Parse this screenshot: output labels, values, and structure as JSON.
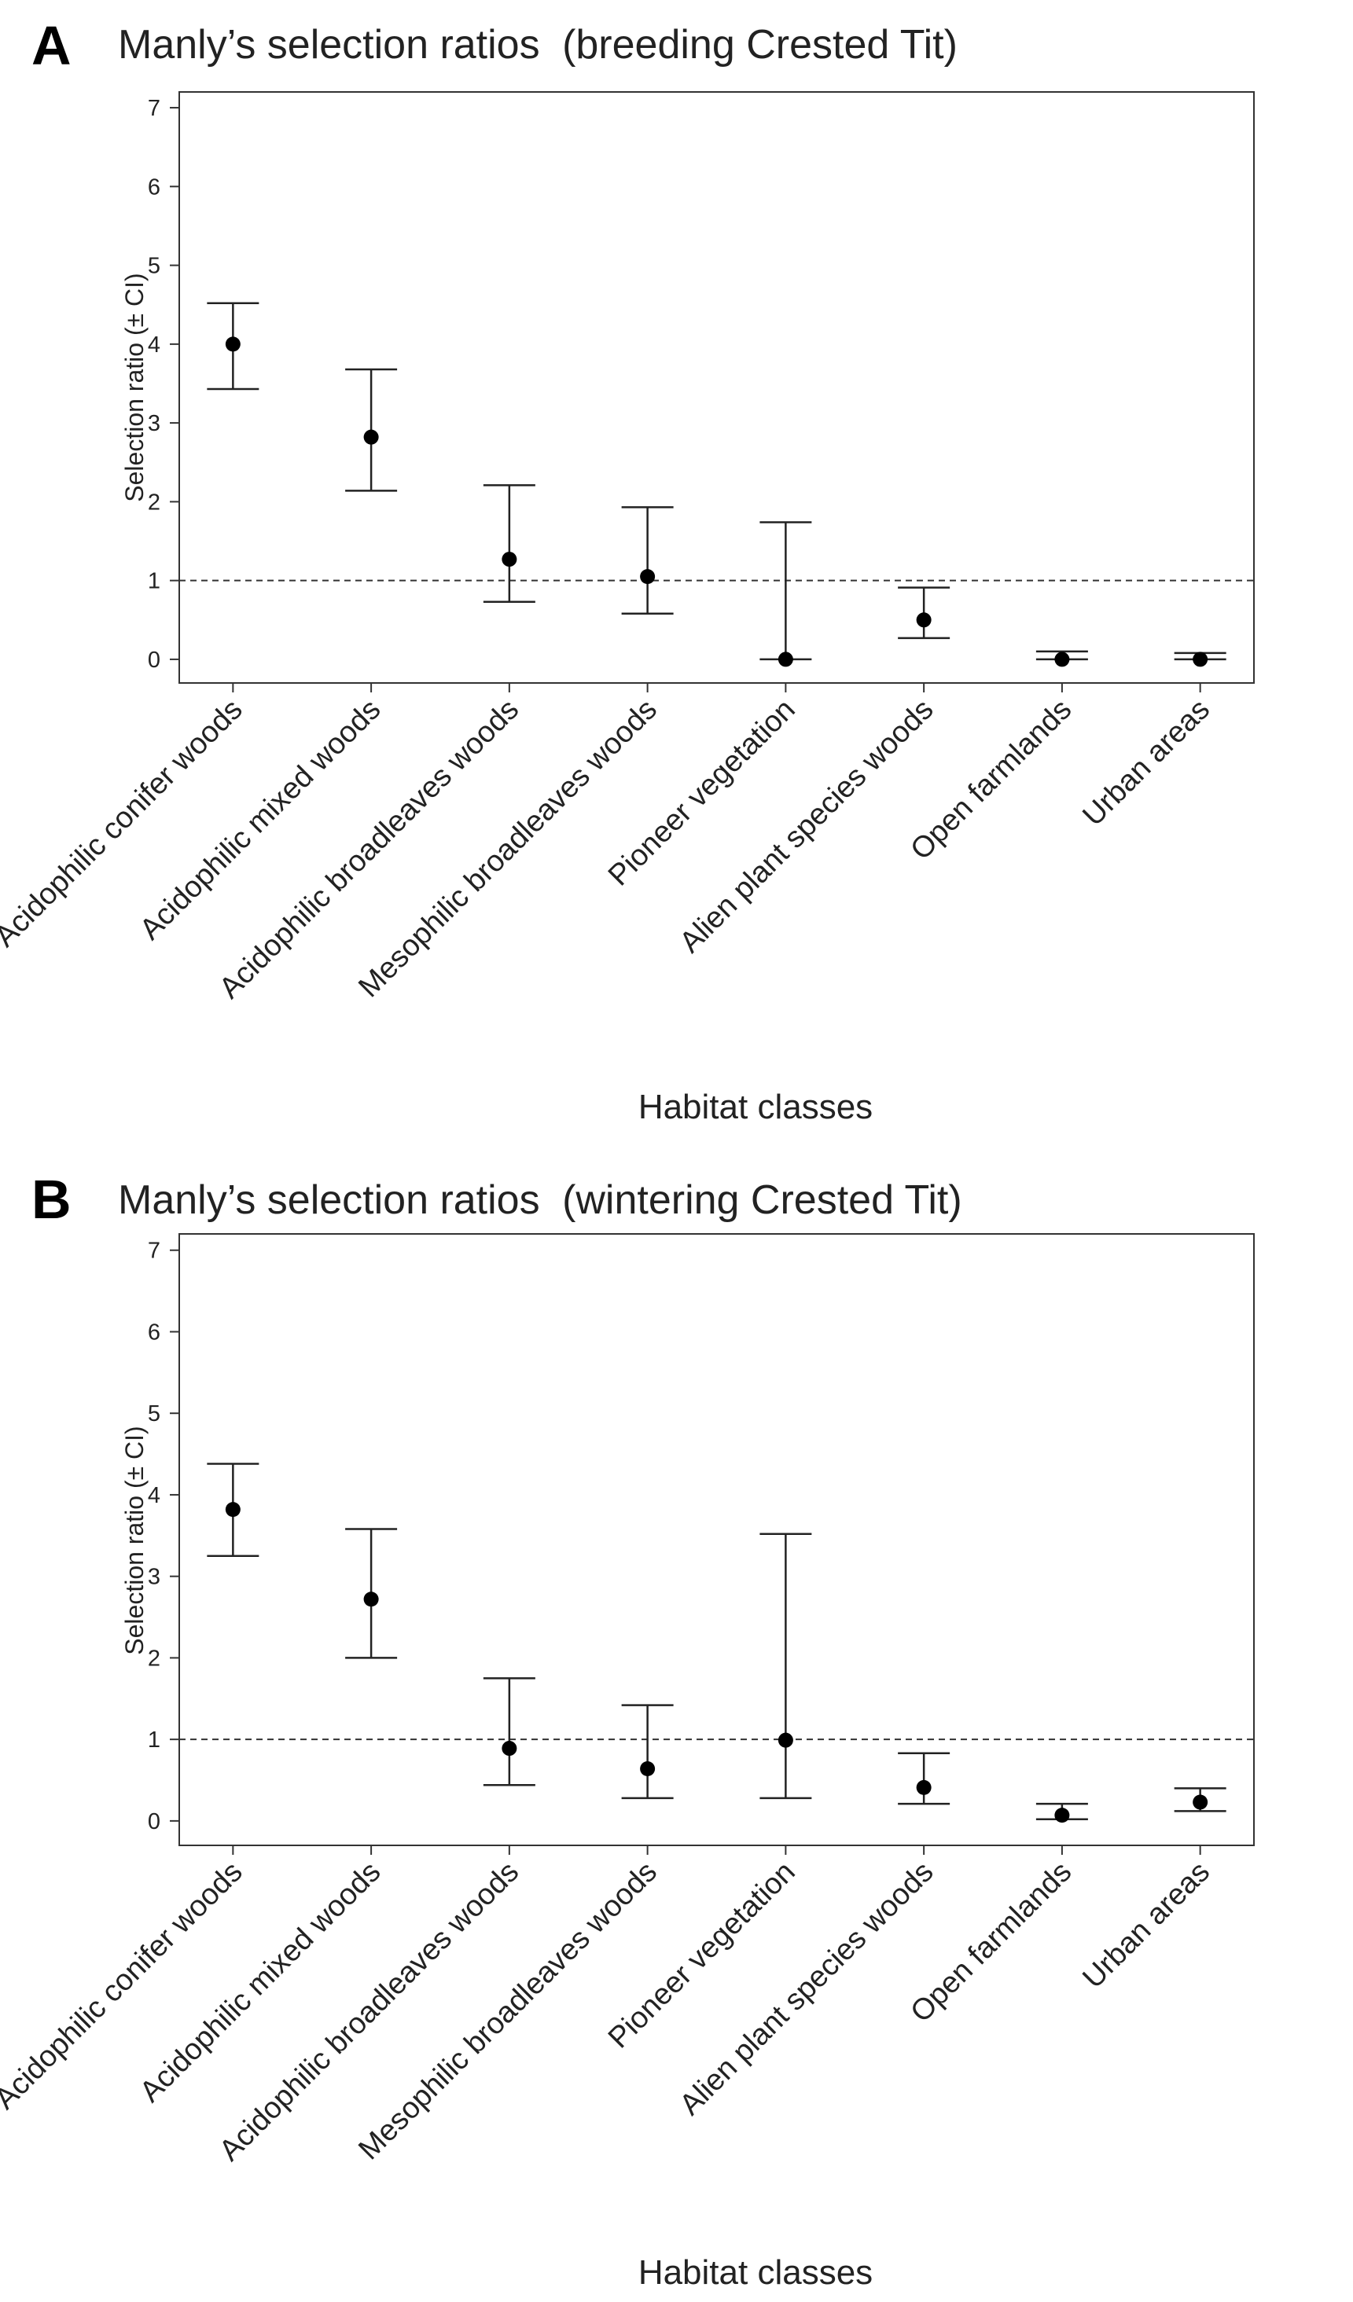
{
  "chart_data": [
    {
      "type": "scatter",
      "panel": "A",
      "title": "Manly’s selection ratios",
      "subtitle": "(breeding Crested Tit)",
      "xlabel": "Habitat classes",
      "ylabel": "Selection ratio (± CI)",
      "ylim": [
        -0.3,
        7.2
      ],
      "yticks": [
        0,
        1,
        2,
        3,
        4,
        5,
        6,
        7
      ],
      "reference_line": 1,
      "categories": [
        "Acidophilic conifer woods",
        "Acidophilic mixed woods",
        "Acidophilic broadleaves woods",
        "Mesophilic broadleaves woods",
        "Pioneer vegetation",
        "Alien plant species woods",
        "Open farmlands",
        "Urban areas"
      ],
      "values": [
        4.0,
        2.82,
        1.27,
        1.05,
        0.0,
        0.5,
        0.0,
        0.0
      ],
      "ci_lower": [
        3.43,
        2.14,
        0.73,
        0.58,
        0.0,
        0.27,
        0.0,
        0.0
      ],
      "ci_upper": [
        4.52,
        3.68,
        2.21,
        1.93,
        1.74,
        0.91,
        0.1,
        0.08
      ],
      "grid": false
    },
    {
      "type": "scatter",
      "panel": "B",
      "title": "Manly’s selection ratios",
      "subtitle": "(wintering Crested Tit)",
      "xlabel": "Habitat classes",
      "ylabel": "Selection ratio (± CI)",
      "ylim": [
        -0.3,
        7.2
      ],
      "yticks": [
        0,
        1,
        2,
        3,
        4,
        5,
        6,
        7
      ],
      "reference_line": 1,
      "categories": [
        "Acidophilic conifer woods",
        "Acidophilic mixed woods",
        "Acidophilic broadleaves woods",
        "Mesophilic broadleaves woods",
        "Pioneer vegetation",
        "Alien plant species woods",
        "Open farmlands",
        "Urban areas"
      ],
      "values": [
        3.82,
        2.72,
        0.89,
        0.64,
        0.99,
        0.41,
        0.07,
        0.23
      ],
      "ci_lower": [
        3.25,
        2.0,
        0.44,
        0.28,
        0.28,
        0.21,
        0.02,
        0.12
      ],
      "ci_upper": [
        4.38,
        3.58,
        1.75,
        1.42,
        3.52,
        0.83,
        0.21,
        0.4
      ],
      "grid": false
    }
  ]
}
